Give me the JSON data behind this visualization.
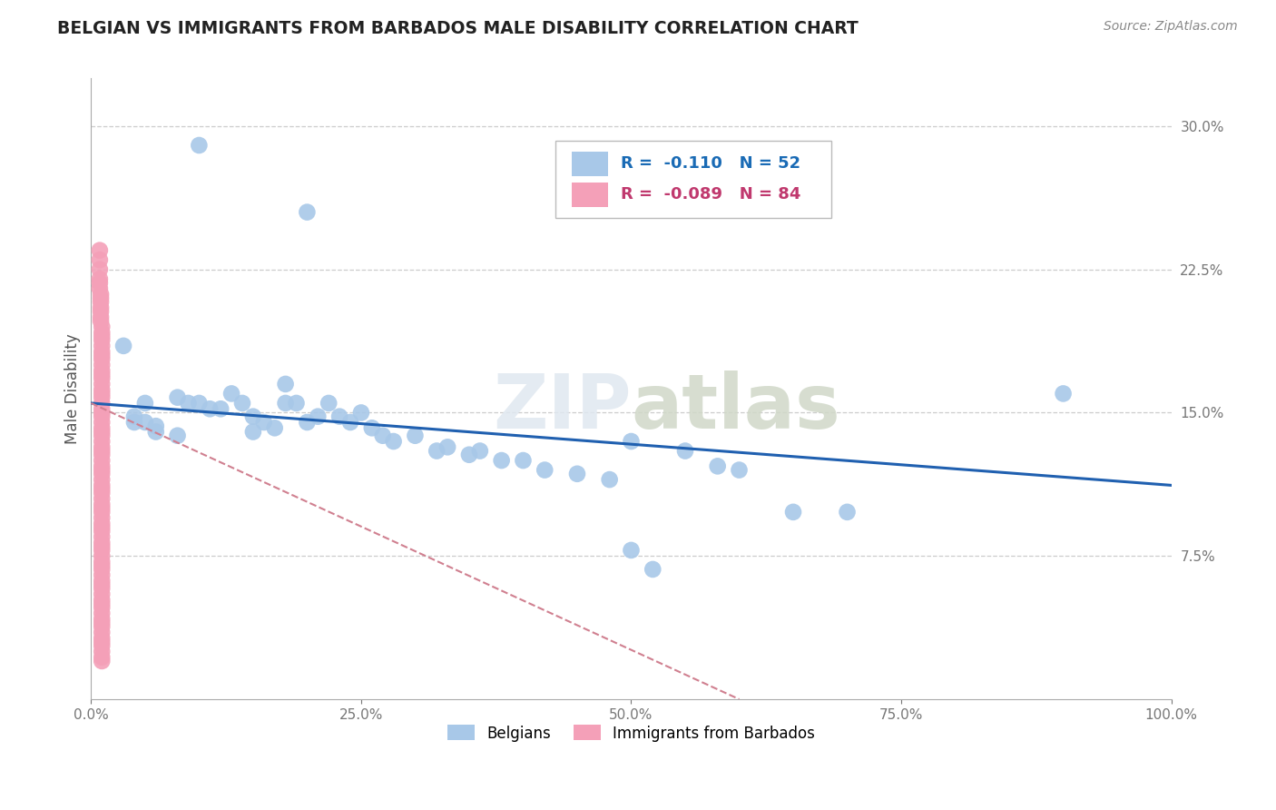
{
  "title": "BELGIAN VS IMMIGRANTS FROM BARBADOS MALE DISABILITY CORRELATION CHART",
  "source": "Source: ZipAtlas.com",
  "ylabel": "Male Disability",
  "xlim": [
    0,
    1.0
  ],
  "ylim": [
    0,
    0.325
  ],
  "xticks": [
    0.0,
    0.25,
    0.5,
    0.75,
    1.0
  ],
  "xticklabels": [
    "0.0%",
    "25.0%",
    "50.0%",
    "75.0%",
    "100.0%"
  ],
  "yticks": [
    0.075,
    0.15,
    0.225,
    0.3
  ],
  "yticklabels": [
    "7.5%",
    "15.0%",
    "22.5%",
    "30.0%"
  ],
  "legend_labels": [
    "Belgians",
    "Immigrants from Barbados"
  ],
  "belgian_color": "#a8c8e8",
  "barbados_color": "#f4a0b8",
  "blue_line_color": "#2060b0",
  "pink_line_color": "#d08090",
  "r_belgian": -0.11,
  "n_belgian": 52,
  "r_barbados": -0.089,
  "n_barbados": 84,
  "belgian_x": [
    0.1,
    0.2,
    0.03,
    0.05,
    0.04,
    0.04,
    0.05,
    0.06,
    0.08,
    0.09,
    0.1,
    0.11,
    0.12,
    0.13,
    0.14,
    0.15,
    0.16,
    0.17,
    0.18,
    0.2,
    0.22,
    0.25,
    0.27,
    0.28,
    0.3,
    0.32,
    0.35,
    0.38,
    0.4,
    0.42,
    0.45,
    0.48,
    0.5,
    0.55,
    0.58,
    0.6,
    0.65,
    0.7,
    0.5,
    0.52,
    0.24,
    0.26,
    0.18,
    0.19,
    0.21,
    0.23,
    0.33,
    0.36,
    0.9,
    0.06,
    0.08,
    0.15
  ],
  "belgian_y": [
    0.29,
    0.255,
    0.185,
    0.155,
    0.148,
    0.145,
    0.145,
    0.143,
    0.158,
    0.155,
    0.155,
    0.152,
    0.152,
    0.16,
    0.155,
    0.148,
    0.145,
    0.142,
    0.155,
    0.145,
    0.155,
    0.15,
    0.138,
    0.135,
    0.138,
    0.13,
    0.128,
    0.125,
    0.125,
    0.12,
    0.118,
    0.115,
    0.135,
    0.13,
    0.122,
    0.12,
    0.098,
    0.098,
    0.078,
    0.068,
    0.145,
    0.142,
    0.165,
    0.155,
    0.148,
    0.148,
    0.132,
    0.13,
    0.16,
    0.14,
    0.138,
    0.14
  ],
  "barbados_x": [
    0.008,
    0.008,
    0.008,
    0.008,
    0.008,
    0.008,
    0.009,
    0.009,
    0.009,
    0.009,
    0.009,
    0.009,
    0.009,
    0.01,
    0.01,
    0.01,
    0.01,
    0.01,
    0.01,
    0.01,
    0.01,
    0.01,
    0.01,
    0.01,
    0.01,
    0.01,
    0.01,
    0.01,
    0.01,
    0.01,
    0.01,
    0.01,
    0.01,
    0.01,
    0.01,
    0.01,
    0.01,
    0.01,
    0.01,
    0.01,
    0.01,
    0.01,
    0.01,
    0.01,
    0.01,
    0.01,
    0.01,
    0.01,
    0.01,
    0.01,
    0.01,
    0.01,
    0.01,
    0.01,
    0.01,
    0.01,
    0.01,
    0.01,
    0.01,
    0.01,
    0.01,
    0.01,
    0.01,
    0.01,
    0.01,
    0.01,
    0.01,
    0.01,
    0.01,
    0.01,
    0.01,
    0.01,
    0.01,
    0.01,
    0.01,
    0.01,
    0.01,
    0.01,
    0.01,
    0.01,
    0.01,
    0.01,
    0.01,
    0.01
  ],
  "barbados_y": [
    0.235,
    0.23,
    0.225,
    0.22,
    0.218,
    0.215,
    0.212,
    0.21,
    0.208,
    0.205,
    0.203,
    0.2,
    0.198,
    0.195,
    0.192,
    0.19,
    0.188,
    0.185,
    0.182,
    0.18,
    0.178,
    0.175,
    0.172,
    0.17,
    0.168,
    0.165,
    0.162,
    0.16,
    0.158,
    0.155,
    0.152,
    0.15,
    0.148,
    0.145,
    0.142,
    0.14,
    0.138,
    0.135,
    0.132,
    0.13,
    0.128,
    0.125,
    0.122,
    0.12,
    0.118,
    0.115,
    0.112,
    0.11,
    0.108,
    0.105,
    0.102,
    0.1,
    0.098,
    0.095,
    0.092,
    0.09,
    0.088,
    0.085,
    0.082,
    0.08,
    0.078,
    0.075,
    0.072,
    0.07,
    0.068,
    0.065,
    0.062,
    0.06,
    0.058,
    0.055,
    0.052,
    0.05,
    0.048,
    0.045,
    0.042,
    0.04,
    0.038,
    0.035,
    0.032,
    0.03,
    0.028,
    0.025,
    0.022,
    0.02
  ],
  "blue_line_start_y": 0.155,
  "blue_line_end_y": 0.112,
  "pink_line_start_y": 0.155,
  "pink_line_end_x": 0.6,
  "pink_line_end_y": 0.0
}
